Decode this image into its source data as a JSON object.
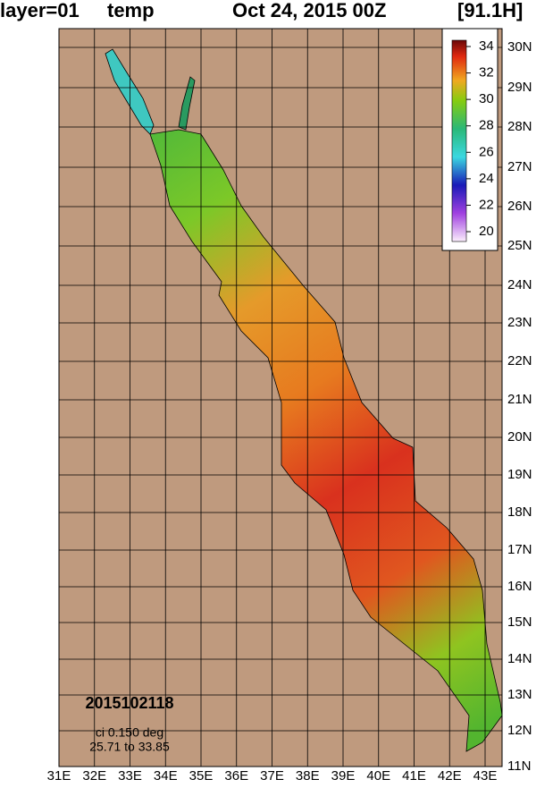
{
  "title": {
    "layer": "layer=01",
    "field": "temp",
    "date": "Oct 24, 2015 00Z",
    "forecast": "[91.1H]"
  },
  "lon_labels": [
    "31E",
    "32E",
    "33E",
    "34E",
    "35E",
    "36E",
    "37E",
    "38E",
    "39E",
    "40E",
    "41E",
    "42E",
    "43E"
  ],
  "lat_labels": [
    "30N",
    "29N",
    "28N",
    "27N",
    "26N",
    "25N",
    "24N",
    "23N",
    "22N",
    "21N",
    "20N",
    "19N",
    "18N",
    "17N",
    "16N",
    "15N",
    "14N",
    "13N",
    "12N",
    "11N"
  ],
  "colorbar": {
    "ticks": [
      34,
      32,
      30,
      28,
      26,
      24,
      22,
      20
    ]
  },
  "annotations": {
    "stamp": "2015102118",
    "interval": "ci 0.150 deg",
    "range": "25.71 to 33.85"
  }
}
